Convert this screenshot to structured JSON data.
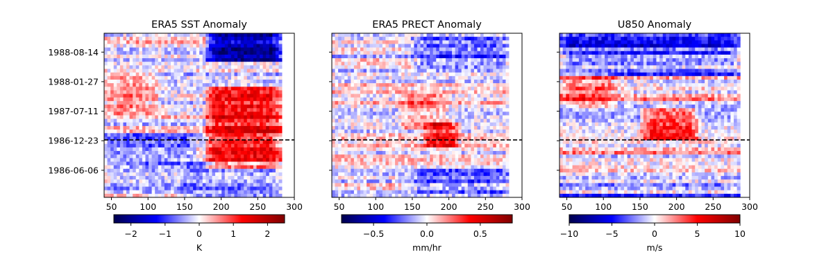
{
  "chart_data": [
    {
      "type": "heatmap",
      "title": "ERA5 SST Anomaly",
      "x_ticks": [
        50,
        100,
        150,
        200,
        250,
        300
      ],
      "xlim": [
        40,
        300
      ],
      "data_xlim": [
        40,
        283
      ],
      "y_ticks": [
        "1988-08-14",
        "1988-01-27",
        "1987-07-11",
        "1986-12-23",
        "1986-06-06"
      ],
      "reference_line": "1986-12-23",
      "colormap": "seismic",
      "colorbar": {
        "ticks": [
          -2,
          -1,
          0,
          1,
          2
        ],
        "tick_labels": [
          "−2",
          "−1",
          "0",
          "1",
          "2"
        ],
        "range": [
          -2.5,
          2.5
        ],
        "label": "K"
      },
      "features": [
        {
          "x0": 178,
          "x1": 283,
          "y0": 0.32,
          "y1": 0.82,
          "value": 1.3
        },
        {
          "x0": 180,
          "x1": 283,
          "y0": 0.0,
          "y1": 0.17,
          "value": -1.8
        },
        {
          "x0": 40,
          "x1": 115,
          "y0": 0.25,
          "y1": 0.5,
          "value": 0.6
        },
        {
          "x0": 40,
          "x1": 165,
          "y0": 0.6,
          "y1": 0.98,
          "value": -0.55
        },
        {
          "x0": 150,
          "x1": 283,
          "y0": 0.78,
          "y1": 1.0,
          "value": -0.7
        }
      ]
    },
    {
      "type": "heatmap",
      "title": "ERA5 PRECT Anomaly",
      "x_ticks": [
        50,
        100,
        150,
        200,
        250,
        300
      ],
      "xlim": [
        40,
        300
      ],
      "data_xlim": [
        40,
        282
      ],
      "reference_line": "1986-12-23",
      "colormap": "seismic",
      "colorbar": {
        "ticks": [
          -0.5,
          0.0,
          0.5
        ],
        "tick_labels": [
          "−0.5",
          "0.0",
          "0.5"
        ],
        "range": [
          -0.8,
          0.8
        ],
        "label": "mm/hr"
      },
      "features": [
        {
          "x0": 150,
          "x1": 282,
          "y0": 0.02,
          "y1": 0.22,
          "value": -0.22
        },
        {
          "x0": 165,
          "x1": 215,
          "y0": 0.55,
          "y1": 0.7,
          "value": 0.35
        },
        {
          "x0": 130,
          "x1": 200,
          "y0": 0.38,
          "y1": 0.58,
          "value": 0.18
        },
        {
          "x0": 150,
          "x1": 282,
          "y0": 0.82,
          "y1": 0.98,
          "value": -0.2
        }
      ]
    },
    {
      "type": "heatmap",
      "title": "U850 Anomaly",
      "x_ticks": [
        50,
        100,
        150,
        200,
        250,
        300
      ],
      "xlim": [
        40,
        300
      ],
      "data_xlim": [
        40,
        287
      ],
      "reference_line": "1986-12-23",
      "colormap": "seismic",
      "colorbar": {
        "ticks": [
          -10,
          -5,
          0,
          5,
          10
        ],
        "tick_labels": [
          "−10",
          "−5",
          "0",
          "5",
          "10"
        ],
        "range": [
          -10,
          10
        ],
        "label": "m/s"
      },
      "features": [
        {
          "x0": 40,
          "x1": 287,
          "y0": 0.0,
          "y1": 0.25,
          "value": -3.5
        },
        {
          "x0": 150,
          "x1": 230,
          "y0": 0.45,
          "y1": 0.65,
          "value": 4.5
        },
        {
          "x0": 40,
          "x1": 120,
          "y0": 0.25,
          "y1": 0.45,
          "value": 2.5
        }
      ]
    }
  ]
}
